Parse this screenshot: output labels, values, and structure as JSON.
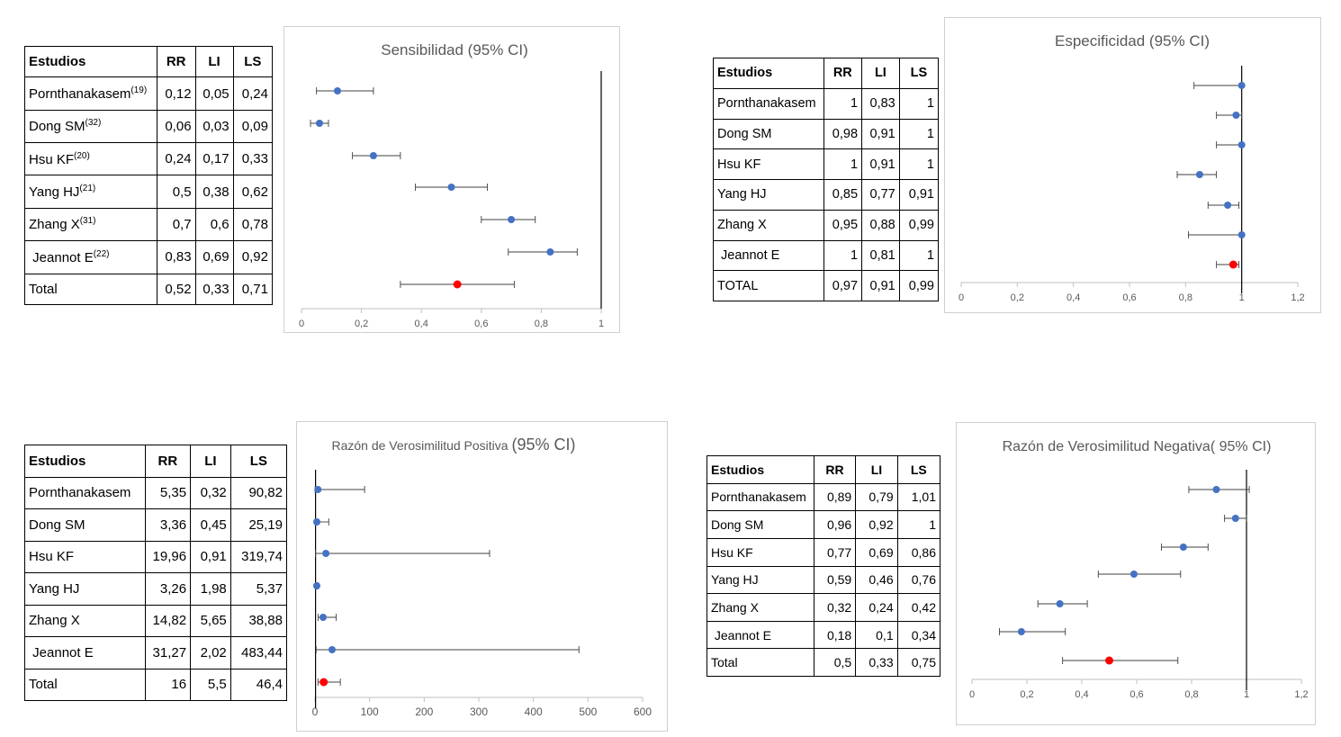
{
  "tables": [
    {
      "headers": [
        "Estudios",
        "RR",
        "LI",
        "LS"
      ],
      "rows": [
        {
          "study": "Pornthanakasem",
          "sup": "(19)",
          "rr": "0,12",
          "li": "0,05",
          "ls": "0,24"
        },
        {
          "study": "Dong SM",
          "sup": "(32)",
          "rr": "0,06",
          "li": "0,03",
          "ls": "0,09"
        },
        {
          "study": "Hsu KF",
          "sup": "(20)",
          "rr": "0,24",
          "li": "0,17",
          "ls": "0,33"
        },
        {
          "study": "Yang HJ",
          "sup": "(21)",
          "rr": "0,5",
          "li": "0,38",
          "ls": "0,62"
        },
        {
          "study": "Zhang X",
          "sup": "(31)",
          "rr": "0,7",
          "li": "0,6",
          "ls": "0,78"
        },
        {
          "study": " Jeannot E",
          "sup": "(22)",
          "rr": "0,83",
          "li": "0,69",
          "ls": "0,92"
        },
        {
          "study": "Total",
          "sup": "",
          "rr": "0,52",
          "li": "0,33",
          "ls": "0,71"
        }
      ]
    },
    {
      "headers": [
        "Estudios",
        "RR",
        "LI",
        "LS"
      ],
      "rows": [
        {
          "study": "Pornthanakasem",
          "sup": "",
          "rr": "1",
          "li": "0,83",
          "ls": "1"
        },
        {
          "study": "Dong SM",
          "sup": "",
          "rr": "0,98",
          "li": "0,91",
          "ls": "1"
        },
        {
          "study": "Hsu KF",
          "sup": "",
          "rr": "1",
          "li": "0,91",
          "ls": "1"
        },
        {
          "study": "Yang HJ",
          "sup": "",
          "rr": "0,85",
          "li": "0,77",
          "ls": "0,91"
        },
        {
          "study": "Zhang X",
          "sup": "",
          "rr": "0,95",
          "li": "0,88",
          "ls": "0,99"
        },
        {
          "study": " Jeannot E",
          "sup": "",
          "rr": "1",
          "li": "0,81",
          "ls": "1"
        },
        {
          "study": "TOTAL",
          "sup": "",
          "rr": "0,97",
          "li": "0,91",
          "ls": "0,99"
        }
      ]
    },
    {
      "headers": [
        "Estudios",
        "RR",
        "LI",
        "LS"
      ],
      "rows": [
        {
          "study": "Pornthanakasem",
          "sup": "",
          "rr": "5,35",
          "li": "0,32",
          "ls": "90,82"
        },
        {
          "study": "Dong SM",
          "sup": "",
          "rr": "3,36",
          "li": "0,45",
          "ls": "25,19"
        },
        {
          "study": "Hsu KF",
          "sup": "",
          "rr": "19,96",
          "li": "0,91",
          "ls": "319,74"
        },
        {
          "study": "Yang HJ",
          "sup": "",
          "rr": "3,26",
          "li": "1,98",
          "ls": "5,37"
        },
        {
          "study": "Zhang X",
          "sup": "",
          "rr": "14,82",
          "li": "5,65",
          "ls": "38,88"
        },
        {
          "study": " Jeannot E",
          "sup": "",
          "rr": "31,27",
          "li": "2,02",
          "ls": "483,44"
        },
        {
          "study": "Total",
          "sup": "",
          "rr": "16",
          "li": "5,5",
          "ls": "46,4"
        }
      ]
    },
    {
      "headers": [
        "Estudios",
        "RR",
        "LI",
        "LS"
      ],
      "rows": [
        {
          "study": "Pornthanakasem",
          "sup": "",
          "rr": "0,89",
          "li": "0,79",
          "ls": "1,01"
        },
        {
          "study": "Dong SM",
          "sup": "",
          "rr": "0,96",
          "li": "0,92",
          "ls": "1"
        },
        {
          "study": "Hsu KF",
          "sup": "",
          "rr": "0,77",
          "li": "0,69",
          "ls": "0,86"
        },
        {
          "study": "Yang HJ",
          "sup": "",
          "rr": "0,59",
          "li": "0,46",
          "ls": "0,76"
        },
        {
          "study": "Zhang X",
          "sup": "",
          "rr": "0,32",
          "li": "0,24",
          "ls": "0,42"
        },
        {
          "study": " Jeannot E",
          "sup": "",
          "rr": "0,18",
          "li": "0,1",
          "ls": "0,34"
        },
        {
          "study": "Total",
          "sup": "",
          "rr": "0,5",
          "li": "0,33",
          "ls": "0,75"
        }
      ]
    }
  ],
  "chart_data": [
    {
      "type": "scatter",
      "title": "Sensibilidad (95% CI)",
      "xlim": [
        0,
        1
      ],
      "x_ticks": [
        "0",
        "0,2",
        "0,4",
        "0,6",
        "0,8",
        "1"
      ],
      "reference_line": 1,
      "grid": false,
      "points": [
        {
          "x": 0.12,
          "lo": 0.05,
          "hi": 0.24,
          "total": false
        },
        {
          "x": 0.06,
          "lo": 0.03,
          "hi": 0.09,
          "total": false
        },
        {
          "x": 0.24,
          "lo": 0.17,
          "hi": 0.33,
          "total": false
        },
        {
          "x": 0.5,
          "lo": 0.38,
          "hi": 0.62,
          "total": false
        },
        {
          "x": 0.7,
          "lo": 0.6,
          "hi": 0.78,
          "total": false
        },
        {
          "x": 0.83,
          "lo": 0.69,
          "hi": 0.92,
          "total": false
        },
        {
          "x": 0.52,
          "lo": 0.33,
          "hi": 0.71,
          "total": true
        }
      ]
    },
    {
      "type": "scatter",
      "title": "Especificidad (95% CI)",
      "xlim": [
        0,
        1.2
      ],
      "x_ticks": [
        "0",
        "0,2",
        "0,4",
        "0,6",
        "0,8",
        "1",
        "1,2"
      ],
      "reference_line": 1,
      "grid": false,
      "points": [
        {
          "x": 1,
          "lo": 0.83,
          "hi": 1,
          "total": false
        },
        {
          "x": 0.98,
          "lo": 0.91,
          "hi": 1,
          "total": false
        },
        {
          "x": 1,
          "lo": 0.91,
          "hi": 1,
          "total": false
        },
        {
          "x": 0.85,
          "lo": 0.77,
          "hi": 0.91,
          "total": false
        },
        {
          "x": 0.95,
          "lo": 0.88,
          "hi": 0.99,
          "total": false
        },
        {
          "x": 1,
          "lo": 0.81,
          "hi": 1,
          "total": false
        },
        {
          "x": 0.97,
          "lo": 0.91,
          "hi": 0.99,
          "total": true
        }
      ]
    },
    {
      "type": "scatter",
      "title": "Razón de Verosimilitud Positiva ",
      "title_suffix": "(95% CI)",
      "xlim": [
        0,
        600
      ],
      "x_ticks": [
        "0",
        "100",
        "200",
        "300",
        "400",
        "500",
        "600"
      ],
      "reference_line": 1,
      "grid": false,
      "points": [
        {
          "x": 5.35,
          "lo": 0.32,
          "hi": 90.82,
          "total": false
        },
        {
          "x": 3.36,
          "lo": 0.45,
          "hi": 25.19,
          "total": false
        },
        {
          "x": 19.96,
          "lo": 0.91,
          "hi": 319.74,
          "total": false
        },
        {
          "x": 3.26,
          "lo": 1.98,
          "hi": 5.37,
          "total": false
        },
        {
          "x": 14.82,
          "lo": 5.65,
          "hi": 38.88,
          "total": false
        },
        {
          "x": 31.27,
          "lo": 2.02,
          "hi": 483.44,
          "total": false
        },
        {
          "x": 16,
          "lo": 5.5,
          "hi": 46.4,
          "total": true
        }
      ]
    },
    {
      "type": "scatter",
      "title": "Razón de Verosimilitud Negativa( 95% CI)",
      "xlim": [
        0,
        1.2
      ],
      "x_ticks": [
        "0",
        "0,2",
        "0,4",
        "0,6",
        "0,8",
        "1",
        "1,2"
      ],
      "reference_line": 1,
      "grid": false,
      "points": [
        {
          "x": 0.89,
          "lo": 0.79,
          "hi": 1.01,
          "total": false
        },
        {
          "x": 0.96,
          "lo": 0.92,
          "hi": 1,
          "total": false
        },
        {
          "x": 0.77,
          "lo": 0.69,
          "hi": 0.86,
          "total": false
        },
        {
          "x": 0.59,
          "lo": 0.46,
          "hi": 0.76,
          "total": false
        },
        {
          "x": 0.32,
          "lo": 0.24,
          "hi": 0.42,
          "total": false
        },
        {
          "x": 0.18,
          "lo": 0.1,
          "hi": 0.34,
          "total": false
        },
        {
          "x": 0.5,
          "lo": 0.33,
          "hi": 0.75,
          "total": true
        }
      ]
    }
  ],
  "colors": {
    "study_point": "#4472c4",
    "total_point": "#ff0000",
    "error_bar": "#404040",
    "axis": "#bfbfbf"
  }
}
